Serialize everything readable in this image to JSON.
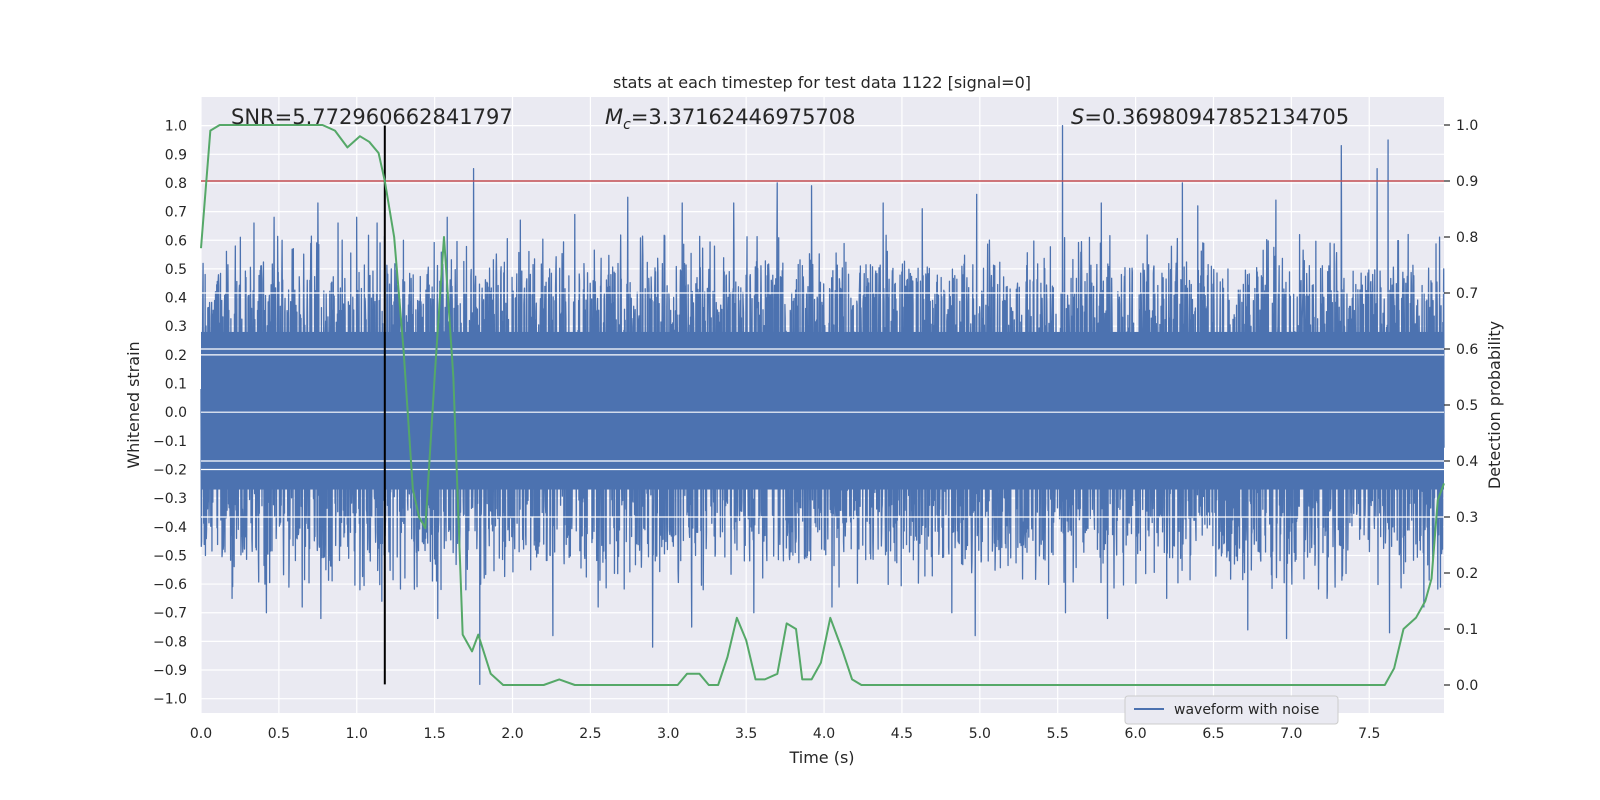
{
  "chart_data": {
    "type": "line",
    "title": "stats at each timestep for test data 1122 [signal=0]",
    "xlabel": "Time (s)",
    "ylabel": "Whitened strain",
    "y2label": "Detection probability",
    "xlim": [
      0,
      7.98
    ],
    "ylim": [
      -1.05,
      1.1
    ],
    "y2lim": [
      -0.05,
      1.05
    ],
    "x_ticks": [
      0.0,
      0.5,
      1.0,
      1.5,
      2.0,
      2.5,
      3.0,
      3.5,
      4.0,
      4.5,
      5.0,
      5.5,
      6.0,
      6.5,
      7.0,
      7.5
    ],
    "x_tick_labels": [
      "0.0",
      "0.5",
      "1.0",
      "1.5",
      "2.0",
      "2.5",
      "3.0",
      "3.5",
      "4.0",
      "4.5",
      "5.0",
      "5.5",
      "6.0",
      "6.5",
      "7.0",
      "7.5"
    ],
    "y_ticks": [
      1.0,
      0.9,
      0.8,
      0.7,
      0.6,
      0.5,
      0.4,
      0.3,
      0.2,
      0.1,
      0.0,
      -0.1,
      -0.2,
      -0.3,
      -0.4,
      -0.5,
      -0.6,
      -0.7,
      -0.8,
      -0.9,
      -1.0
    ],
    "y_tick_labels": [
      "1.0",
      "0.9",
      "0.8",
      "0.7",
      "0.6",
      "0.5",
      "0.4",
      "0.3",
      "0.2",
      "0.1",
      "0.0",
      "−0.1",
      "−0.2",
      "−0.3",
      "−0.4",
      "−0.5",
      "−0.6",
      "−0.7",
      "−0.8",
      "−0.9",
      "−1.0"
    ],
    "y2_ticks": [
      1.0,
      0.9,
      0.8,
      0.7,
      0.6,
      0.5,
      0.4,
      0.3,
      0.2,
      0.1,
      0.0
    ],
    "y2_tick_labels": [
      "1.0",
      "0.9",
      "0.8",
      "0.7",
      "0.6",
      "0.5",
      "0.4",
      "0.3",
      "0.2",
      "0.1",
      "0.0"
    ],
    "grid": true,
    "annotations": {
      "snr": "SNR=5.772960662841797",
      "mc_symbol": "M",
      "mc_sub": "c",
      "mc_value": "=3.37162446975708",
      "s_symbol": "S",
      "s_value": "=0.36980947852134705"
    },
    "legend": {
      "placement": "lower-right",
      "entries": [
        "waveform with noise"
      ]
    },
    "series": [
      {
        "name": "waveform with noise",
        "axis": "left",
        "color": "#4c72b0",
        "description_values": {
          "core_band": [
            -0.37,
            0.4
          ],
          "peak_max": 1.0,
          "peak_min": -0.95
        },
        "peaks": [
          {
            "x": 0.22,
            "y": 0.58
          },
          {
            "x": 0.2,
            "y": -0.65
          },
          {
            "x": 0.34,
            "y": 0.66
          },
          {
            "x": 0.41,
            "y": -0.6
          },
          {
            "x": 0.52,
            "y": 0.6
          },
          {
            "x": 0.42,
            "y": -0.7
          },
          {
            "x": 0.47,
            "y": 0.68
          },
          {
            "x": 0.65,
            "y": -0.68
          },
          {
            "x": 0.75,
            "y": 0.73
          },
          {
            "x": 0.77,
            "y": -0.72
          },
          {
            "x": 0.88,
            "y": 0.66
          },
          {
            "x": 1.0,
            "y": 0.68
          },
          {
            "x": 1.02,
            "y": -0.62
          },
          {
            "x": 1.13,
            "y": 0.66
          },
          {
            "x": 1.16,
            "y": -0.66
          },
          {
            "x": 1.3,
            "y": 0.6
          },
          {
            "x": 1.52,
            "y": -0.72
          },
          {
            "x": 1.58,
            "y": 0.68
          },
          {
            "x": 1.75,
            "y": 0.85
          },
          {
            "x": 1.79,
            "y": -0.95
          },
          {
            "x": 1.7,
            "y": -0.62
          },
          {
            "x": 2.05,
            "y": 0.67
          },
          {
            "x": 2.26,
            "y": -0.78
          },
          {
            "x": 2.4,
            "y": 0.69
          },
          {
            "x": 2.55,
            "y": -0.68
          },
          {
            "x": 2.74,
            "y": 0.75
          },
          {
            "x": 2.9,
            "y": -0.82
          },
          {
            "x": 3.09,
            "y": 0.73
          },
          {
            "x": 3.15,
            "y": -0.75
          },
          {
            "x": 3.42,
            "y": 0.73
          },
          {
            "x": 3.55,
            "y": -0.7
          },
          {
            "x": 3.7,
            "y": 0.8
          },
          {
            "x": 3.92,
            "y": 0.79
          },
          {
            "x": 4.05,
            "y": -0.68
          },
          {
            "x": 4.38,
            "y": 0.73
          },
          {
            "x": 4.63,
            "y": 0.71
          },
          {
            "x": 4.82,
            "y": -0.7
          },
          {
            "x": 4.98,
            "y": 0.76
          },
          {
            "x": 4.97,
            "y": -0.78
          },
          {
            "x": 5.53,
            "y": 1.0
          },
          {
            "x": 5.55,
            "y": -0.7
          },
          {
            "x": 5.78,
            "y": 0.73
          },
          {
            "x": 5.82,
            "y": -0.72
          },
          {
            "x": 6.3,
            "y": 0.8
          },
          {
            "x": 6.2,
            "y": -0.65
          },
          {
            "x": 6.4,
            "y": 0.72
          },
          {
            "x": 6.72,
            "y": -0.76
          },
          {
            "x": 6.9,
            "y": 0.74
          },
          {
            "x": 6.97,
            "y": -0.79
          },
          {
            "x": 7.32,
            "y": 0.93
          },
          {
            "x": 7.23,
            "y": -0.65
          },
          {
            "x": 7.55,
            "y": 0.85
          },
          {
            "x": 7.62,
            "y": 0.95
          },
          {
            "x": 7.63,
            "y": -0.77
          },
          {
            "x": 7.75,
            "y": 0.62
          },
          {
            "x": 7.85,
            "y": -0.68
          }
        ]
      },
      {
        "name": "",
        "axis": "right",
        "color": "#55a868",
        "x": [
          0.0,
          0.06,
          0.12,
          0.2,
          0.3,
          0.4,
          0.5,
          0.6,
          0.7,
          0.78,
          0.86,
          0.94,
          1.02,
          1.08,
          1.14,
          1.18,
          1.24,
          1.3,
          1.36,
          1.4,
          1.44,
          1.5,
          1.56,
          1.62,
          1.68,
          1.74,
          1.78,
          1.86,
          1.94,
          2.0,
          2.1,
          2.2,
          2.3,
          2.4,
          2.5,
          2.6,
          2.7,
          2.8,
          2.9,
          3.0,
          3.06,
          3.12,
          3.2,
          3.26,
          3.32,
          3.38,
          3.44,
          3.5,
          3.56,
          3.62,
          3.7,
          3.76,
          3.82,
          3.86,
          3.92,
          3.98,
          4.04,
          4.12,
          4.18,
          4.24,
          4.3,
          4.4,
          4.5,
          4.6,
          4.7,
          4.8,
          4.9,
          5.0,
          5.2,
          5.4,
          5.6,
          5.8,
          6.0,
          6.2,
          6.4,
          6.6,
          6.8,
          7.0,
          7.2,
          7.4,
          7.5,
          7.6,
          7.66,
          7.72,
          7.8,
          7.86,
          7.9,
          7.94,
          7.98
        ],
        "y": [
          0.78,
          0.99,
          1.0,
          1.0,
          1.0,
          1.0,
          1.0,
          1.0,
          1.0,
          1.0,
          0.99,
          0.96,
          0.98,
          0.97,
          0.95,
          0.9,
          0.8,
          0.6,
          0.35,
          0.3,
          0.28,
          0.55,
          0.8,
          0.55,
          0.09,
          0.06,
          0.09,
          0.02,
          0.0,
          0.0,
          0.0,
          0.0,
          0.01,
          0.0,
          0.0,
          0.0,
          0.0,
          0.0,
          0.0,
          0.0,
          0.0,
          0.02,
          0.02,
          0.0,
          0.0,
          0.05,
          0.12,
          0.08,
          0.01,
          0.01,
          0.02,
          0.11,
          0.1,
          0.01,
          0.01,
          0.04,
          0.12,
          0.06,
          0.01,
          0.0,
          0.0,
          0.0,
          0.0,
          0.0,
          0.0,
          0.0,
          0.0,
          0.0,
          0.0,
          0.0,
          0.0,
          0.0,
          0.0,
          0.0,
          0.0,
          0.0,
          0.0,
          0.0,
          0.0,
          0.0,
          0.0,
          0.0,
          0.03,
          0.1,
          0.12,
          0.15,
          0.19,
          0.33,
          0.36
        ]
      }
    ],
    "threshold_line": {
      "axis": "right",
      "y": 0.9,
      "color": "#c44e52"
    },
    "vertical_line": {
      "x": 1.18,
      "color": "#000000"
    }
  },
  "colors": {
    "plot_background": "#eaeaf2",
    "grid": "#ffffff",
    "waveform": "#4c72b0",
    "probability": "#55a868",
    "threshold": "#c44e52"
  }
}
